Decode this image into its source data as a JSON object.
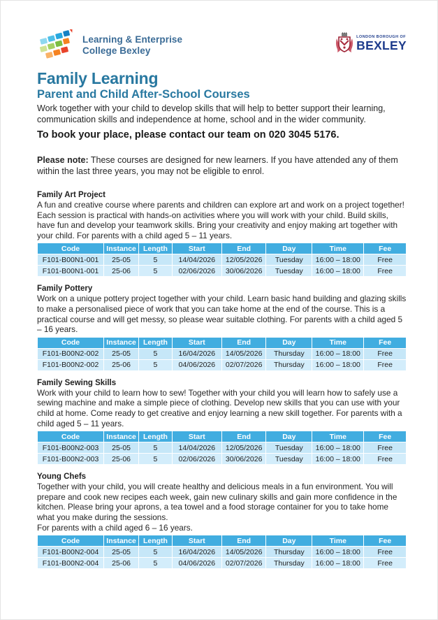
{
  "colors": {
    "heading_teal": "#2878a0",
    "table_header_bg": "#41ade0",
    "row_light": "#c6e7f8",
    "row_lighter": "#d3edfb",
    "college_logo_text": "#3a6b96",
    "bexley_navy": "#1e3c8c"
  },
  "header": {
    "college_logo": {
      "line1": "Learning & Enterprise",
      "line2": "College Bexley"
    },
    "bexley_logo": {
      "top_line": "LONDON BOROUGH OF",
      "name": "BEXLEY"
    }
  },
  "intro": {
    "title": "Family Learning",
    "subtitle": "Parent and Child After-School Courses",
    "description": "Work together with your child to develop skills that will help to better support their learning, communication skills and independence at home, school and in the wider community.",
    "booking": "To book your place, please contact our team on 020 3045 5176.",
    "note_label": "Please note:",
    "note_text": "These courses are designed for new learners. If you have attended any of them within the last three years, you may not be eligible to enrol."
  },
  "table_headers": [
    "Code",
    "Instance",
    "Length",
    "Start",
    "End",
    "Day",
    "Time",
    "Fee"
  ],
  "column_widths": [
    "18%",
    "9.5%",
    "9%",
    "13.5%",
    "12%",
    "12.5%",
    "14%",
    "11.5%"
  ],
  "courses": [
    {
      "name": "Family Art Project",
      "description": "A fun and creative course where parents and children can explore art and work on a project together! Each session is practical with hands-on activities where you will work with your child. Build skills, have fun and develop your teamwork skills. Bring your creativity and enjoy making art together with your child. For parents with a child aged 5 – 11 years.",
      "rows": [
        [
          "F101-B00N1-001",
          "25-05",
          "5",
          "14/04/2026",
          "12/05/2026",
          "Tuesday",
          "16:00 – 18:00",
          "Free"
        ],
        [
          "F101-B00N1-001",
          "25-06",
          "5",
          "02/06/2026",
          "30/06/2026",
          "Tuesday",
          "16:00 – 18:00",
          "Free"
        ]
      ]
    },
    {
      "name": "Family Pottery",
      "description": "Work on a unique pottery project together with your child. Learn basic hand building and glazing skills to make a personalised piece of work that you can take home at the end of the course. This is a practical course and will get messy, so please wear suitable clothing. For parents with a child aged 5 – 16 years.",
      "rows": [
        [
          "F101-B00N2-002",
          "25-05",
          "5",
          "16/04/2026",
          "14/05/2026",
          "Thursday",
          "16:00 – 18:00",
          "Free"
        ],
        [
          "F101-B00N2-002",
          "25-06",
          "5",
          "04/06/2026",
          "02/07/2026",
          "Thursday",
          "16:00 – 18:00",
          "Free"
        ]
      ]
    },
    {
      "name": "Family Sewing Skills",
      "description": "Work with your child to learn how to sew! Together with your child you will learn how to safely use a sewing machine and make a simple piece of clothing. Develop new skills that you can use with your child at home. Come ready to get creative and enjoy learning a new skill together. For parents with a child aged 5 – 11 years.",
      "rows": [
        [
          "F101-B00N2-003",
          "25-05",
          "5",
          "14/04/2026",
          "12/05/2026",
          "Tuesday",
          "16:00 – 18:00",
          "Free"
        ],
        [
          "F101-B00N2-003",
          "25-06",
          "5",
          "02/06/2026",
          "30/06/2026",
          "Tuesday",
          "16:00 – 18:00",
          "Free"
        ]
      ]
    },
    {
      "name": "Young Chefs",
      "description": "Together with your child, you will create healthy and delicious meals in a fun environment. You will prepare and cook new recipes each week, gain new culinary skills and gain more confidence in the kitchen. Please bring your aprons, a tea towel and a food storage container for you to take home what you make during the sessions.",
      "description_line2": "For parents with a child aged 6 – 16 years.",
      "rows": [
        [
          "F101-B00N2-004",
          "25-05",
          "5",
          "16/04/2026",
          "14/05/2026",
          "Thursday",
          "16:00 – 18:00",
          "Free"
        ],
        [
          "F101-B00N2-004",
          "25-06",
          "5",
          "04/06/2026",
          "02/07/2026",
          "Thursday",
          "16:00 – 18:00",
          "Free"
        ]
      ]
    }
  ]
}
